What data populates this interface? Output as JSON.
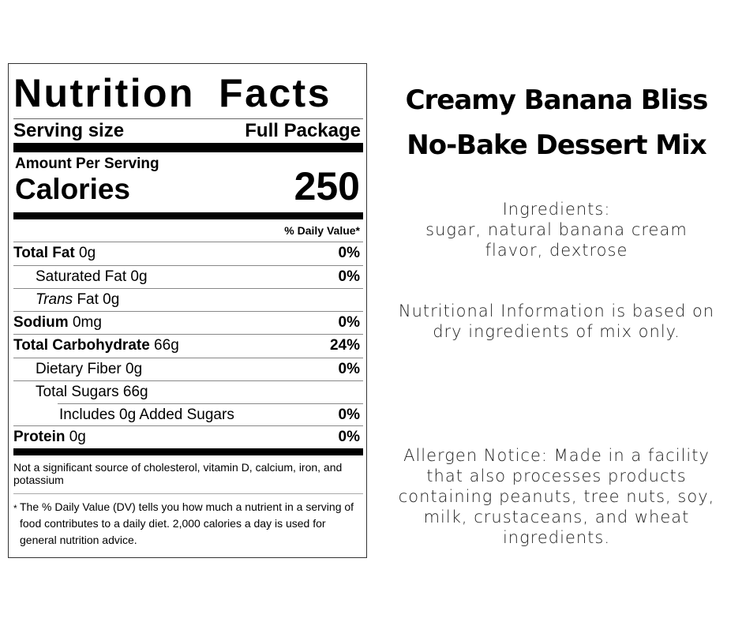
{
  "label": {
    "title": "Nutrition Facts",
    "serving_size_label": "Serving size",
    "serving_size_value": "Full Package",
    "amount_per_serving": "Amount Per Serving",
    "calories_label": "Calories",
    "calories_value": "250",
    "daily_value_header": "% Daily Value*",
    "rows": [
      {
        "name": "Total Fat",
        "amount": " 0g",
        "dv": "0%"
      },
      {
        "name": "Saturated Fat 0g",
        "amount": "",
        "dv": "0%"
      },
      {
        "name": "Trans",
        "amount": " Fat 0g",
        "dv": ""
      },
      {
        "name": "Sodium",
        "amount": " 0mg",
        "dv": "0%"
      },
      {
        "name": "Total Carbohydrate",
        "amount": " 66g",
        "dv": "24%"
      },
      {
        "name": "Dietary Fiber 0g",
        "amount": "",
        "dv": "0%"
      },
      {
        "name": "Total Sugars 66g",
        "amount": "",
        "dv": ""
      },
      {
        "name": "Includes 0g Added Sugars",
        "amount": "",
        "dv": "0%"
      },
      {
        "name": "Protein",
        "amount": " 0g",
        "dv": "0%"
      }
    ],
    "not_significant": "Not a significant source of cholesterol, vitamin D, calcium, iron, and potassium",
    "footnote_star": "*",
    "footnote": "The % Daily Value (DV) tells you how much a nutrient in a serving of food contributes to a daily diet. 2,000 calories a day is used for general nutrition advice."
  },
  "product": {
    "title_line1": "Creamy Banana Bliss",
    "title_line2": "No-Bake Dessert Mix",
    "ingredients_heading": "Ingredients:",
    "ingredients": "sugar, natural banana cream flavor, dextrose",
    "nutrition_note": "Nutritional Information is based on dry ingredients of mix only.",
    "allergen": "Allergen Notice: Made in a facility that also processes products containing peanuts, tree nuts, soy, milk, crustaceans, and wheat ingredients."
  }
}
